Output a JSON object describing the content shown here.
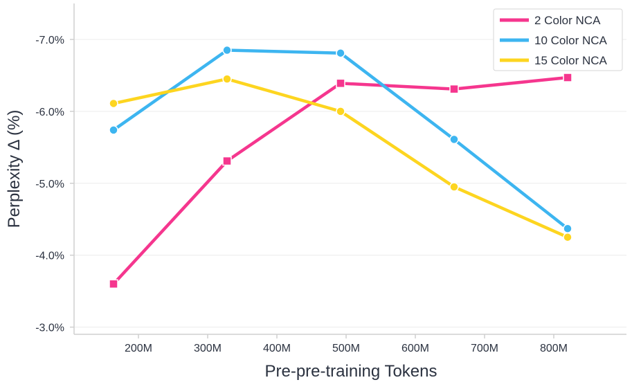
{
  "chart_data": {
    "type": "line",
    "title": "",
    "xlabel": "Pre-pre-training Tokens",
    "ylabel": "Perplexity Δ (%)",
    "x": [
      164,
      328,
      492,
      656,
      820
    ],
    "xlim": [
      107,
      905
    ],
    "ylim": [
      -2.9,
      -7.5
    ],
    "xticks": [
      200,
      300,
      400,
      500,
      600,
      700,
      800
    ],
    "xtick_labels": [
      "200M",
      "300M",
      "400M",
      "500M",
      "600M",
      "700M",
      "800M"
    ],
    "yticks": [
      -3.0,
      -4.0,
      -5.0,
      -6.0,
      -7.0
    ],
    "ytick_labels": [
      "-3.0%",
      "-4.0%",
      "-5.0%",
      "-6.0%",
      "-7.0%"
    ],
    "grid": true,
    "legend_position": "top-right",
    "series": [
      {
        "name": "2 Color NCA",
        "color": "#F5368E",
        "marker": "square",
        "values": [
          -3.6,
          -5.31,
          -6.39,
          -6.31,
          -6.47
        ]
      },
      {
        "name": "10 Color NCA",
        "color": "#3DB5F0",
        "marker": "circle",
        "values": [
          -5.74,
          -6.85,
          -6.81,
          -5.61,
          -4.37
        ]
      },
      {
        "name": "15 Color NCA",
        "color": "#FDD520",
        "marker": "circle",
        "values": [
          -6.11,
          -6.45,
          -6.0,
          -4.95,
          -4.25
        ]
      }
    ]
  }
}
